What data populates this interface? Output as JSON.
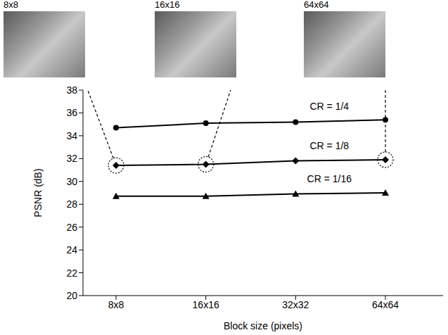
{
  "chart_data": {
    "type": "line",
    "x_label": "Block size (pixels)",
    "y_label": "PSNR (dB)",
    "categories": [
      "8x8",
      "16x16",
      "32x32",
      "64x64"
    ],
    "series": [
      {
        "name": "CR = 1/4",
        "color": "#000000",
        "marker": "circle",
        "values": [
          34.7,
          35.1,
          35.2,
          35.4
        ]
      },
      {
        "name": "CR = 1/8",
        "color": "#000000",
        "marker": "diamond",
        "values": [
          31.4,
          31.5,
          31.8,
          31.9
        ]
      },
      {
        "name": "CR = 1/16",
        "color": "#000000",
        "marker": "triangle",
        "values": [
          28.7,
          28.7,
          28.9,
          29.0
        ]
      }
    ],
    "ylim": [
      20,
      38
    ],
    "yticks": [
      20,
      22,
      24,
      26,
      28,
      30,
      32,
      34,
      36,
      38
    ],
    "grid": false,
    "insets": [
      {
        "label": "8x8",
        "category": "8x8",
        "series": "CR = 1/8"
      },
      {
        "label": "16x16",
        "category": "16x16",
        "series": "CR = 1/8"
      },
      {
        "label": "64x64",
        "category": "64x64",
        "series": "CR = 1/8"
      }
    ]
  }
}
